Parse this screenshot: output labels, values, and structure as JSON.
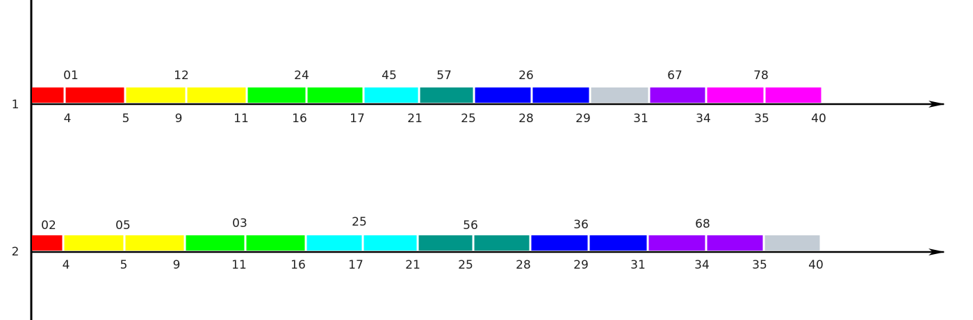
{
  "diagram": {
    "rows": [
      {
        "row_label": "1",
        "segments": [
          {
            "color": "#ff0000"
          },
          {
            "color": "#ff0000"
          },
          {
            "color": "#ffff00"
          },
          {
            "color": "#ffff00"
          },
          {
            "color": "#00ff00"
          },
          {
            "color": "#00ff00"
          },
          {
            "color": "#00ffff"
          },
          {
            "color": "#009688"
          },
          {
            "color": "#0000ff"
          },
          {
            "color": "#0000ff"
          },
          {
            "color": "#c3ccd5"
          },
          {
            "color": "#9900ff"
          },
          {
            "color": "#ff00ff"
          },
          {
            "color": "#ff00ff"
          }
        ],
        "ticks": [
          "4",
          "5",
          "9",
          "11",
          "16",
          "17",
          "21",
          "25",
          "28",
          "29",
          "31",
          "34",
          "35",
          "40"
        ],
        "top_labels": [
          "01",
          "12",
          "24",
          "45",
          "57",
          "26",
          "67",
          "78"
        ]
      },
      {
        "row_label": "2",
        "segments": [
          {
            "color": "#ff0000"
          },
          {
            "color": "#ffff00"
          },
          {
            "color": "#ffff00"
          },
          {
            "color": "#00ff00"
          },
          {
            "color": "#00ff00"
          },
          {
            "color": "#00ffff"
          },
          {
            "color": "#00ffff"
          },
          {
            "color": "#009688"
          },
          {
            "color": "#009688"
          },
          {
            "color": "#0000ff"
          },
          {
            "color": "#0000ff"
          },
          {
            "color": "#9900ff"
          },
          {
            "color": "#9900ff"
          },
          {
            "color": "#c3ccd5"
          }
        ],
        "ticks": [
          "4",
          "5",
          "9",
          "11",
          "16",
          "17",
          "21",
          "25",
          "28",
          "29",
          "31",
          "34",
          "35",
          "40"
        ],
        "top_labels": [
          "02",
          "05",
          "03",
          "25",
          "56",
          "36",
          "68"
        ]
      }
    ],
    "axis_color": "#000000"
  }
}
